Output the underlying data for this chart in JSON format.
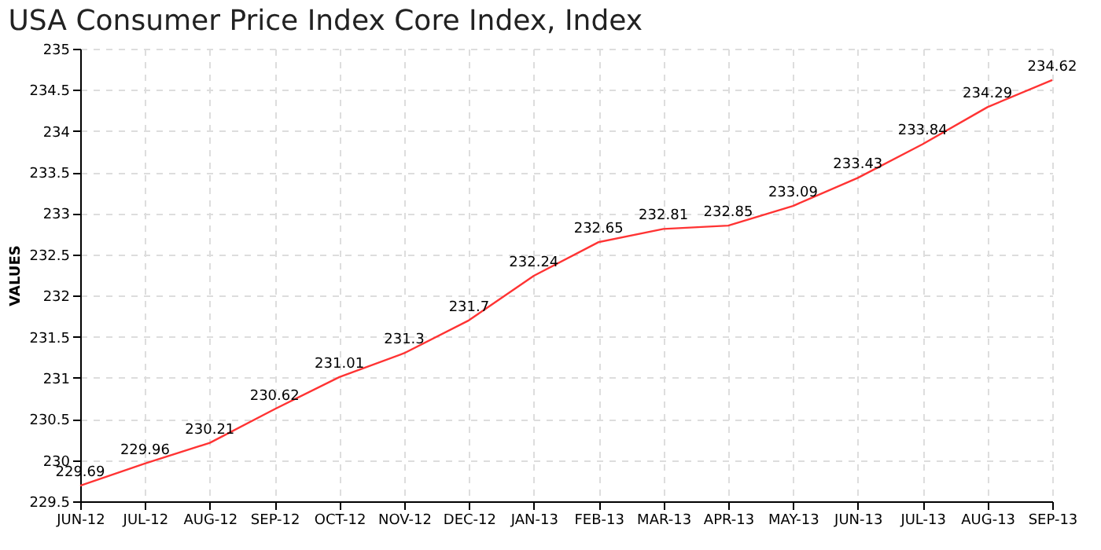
{
  "chart_data": {
    "type": "line",
    "title": "USA Consumer Price Index Core Index, Index",
    "ylabel": "VALUES",
    "categories": [
      "JUN-12",
      "JUL-12",
      "AUG-12",
      "SEP-12",
      "OCT-12",
      "NOV-12",
      "DEC-12",
      "JAN-13",
      "FEB-13",
      "MAR-13",
      "APR-13",
      "MAY-13",
      "JUN-13",
      "JUL-13",
      "AUG-13",
      "SEP-13"
    ],
    "series": [
      {
        "color": "#ff3333",
        "values": [
          229.69,
          229.96,
          230.21,
          230.62,
          231.01,
          231.3,
          231.7,
          232.24,
          232.65,
          232.81,
          232.85,
          233.09,
          233.43,
          233.84,
          234.29,
          234.62
        ]
      }
    ],
    "ylim": [
      229.5,
      235
    ],
    "yticks": [
      229.5,
      230,
      230.5,
      231,
      231.5,
      232,
      232.5,
      233,
      233.5,
      234,
      234.5,
      235
    ],
    "grid": true,
    "data_labels": true
  }
}
